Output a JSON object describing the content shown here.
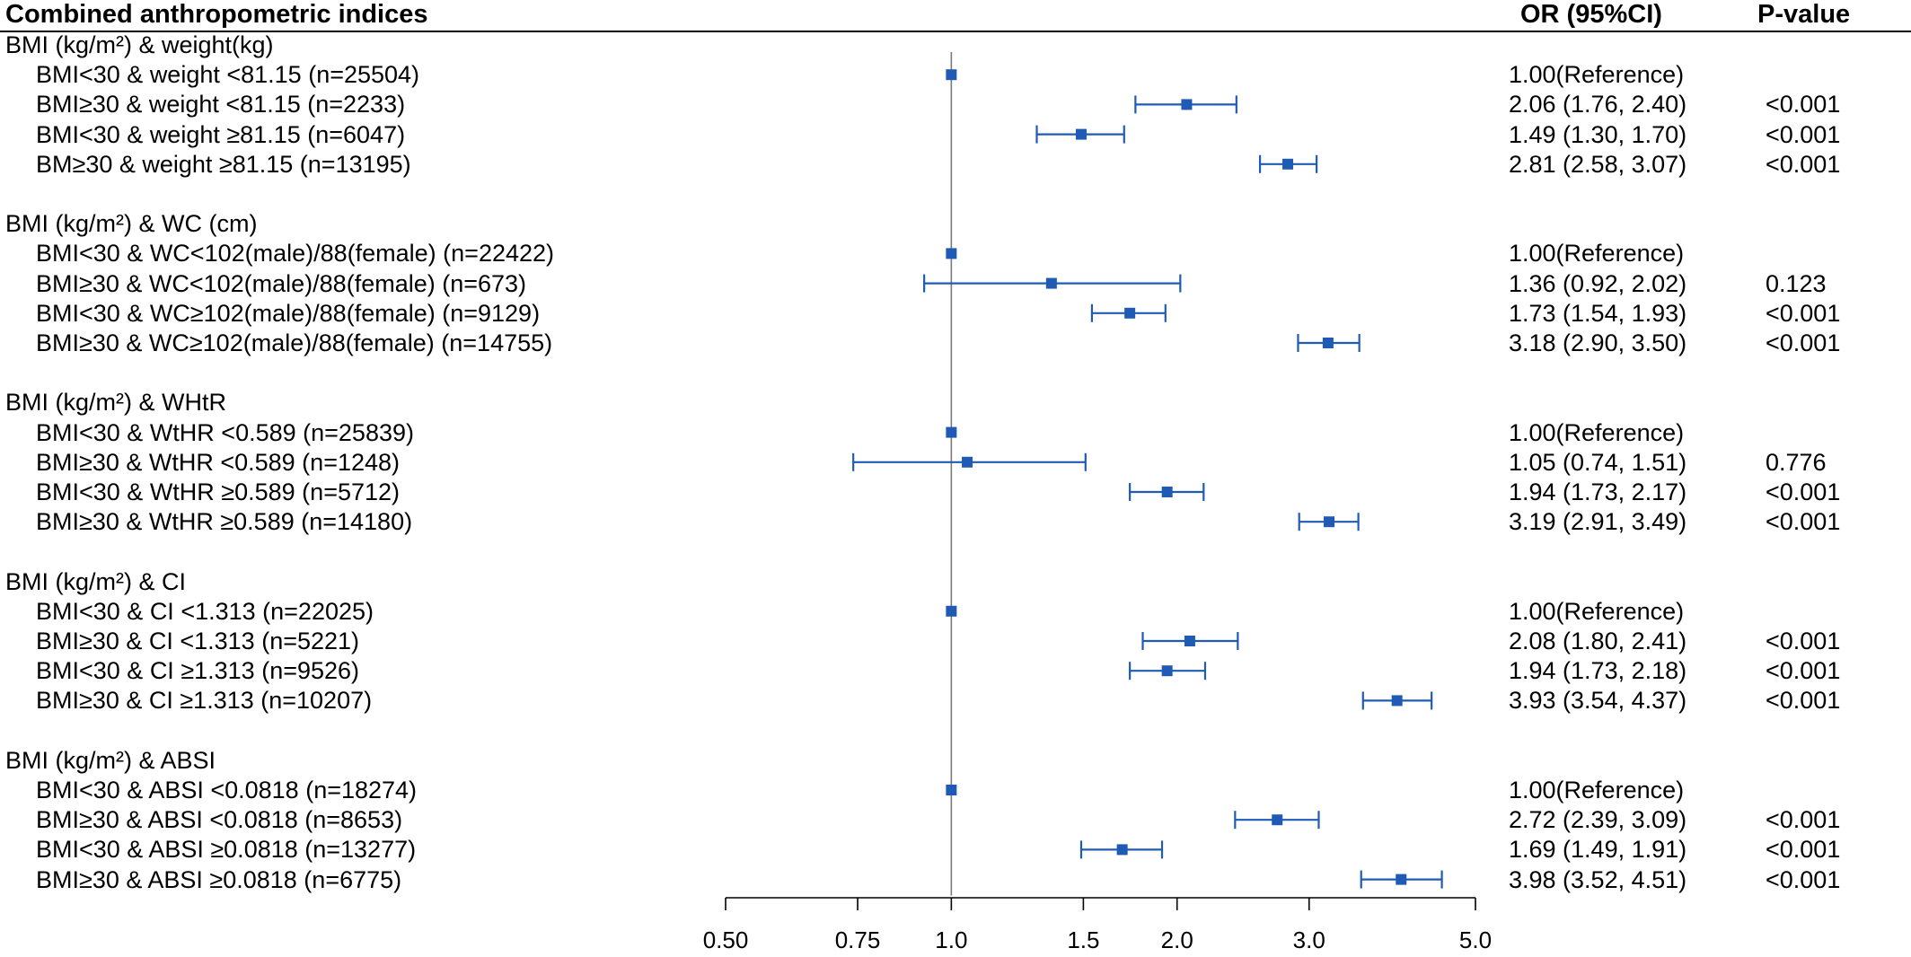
{
  "header": {
    "col_label": "Combined anthropometric indices",
    "col_or": "OR (95%CI)",
    "col_p": "P-value"
  },
  "chart_data": {
    "type": "forest",
    "x_scale": "log",
    "xlim": [
      0.5,
      5.0
    ],
    "reference_line": 1.0,
    "x_ticks": [
      0.5,
      0.75,
      1.0,
      1.5,
      2.0,
      3.0,
      5.0
    ],
    "x_tick_labels": [
      "0.50",
      "0.75",
      "1.0",
      "1.5",
      "2.0",
      "3.0",
      "5.0"
    ],
    "marker_color": "#1f5bb5",
    "groups": [
      {
        "title": "BMI (kg/m²) & weight(kg)",
        "rows": [
          {
            "label": "BMI<30 & weight <81.15 (n=25504)",
            "or": 1.0,
            "lo": null,
            "hi": null,
            "or_text": "1.00(Reference)",
            "p": ""
          },
          {
            "label": "BMI≥30 & weight <81.15 (n=2233)",
            "or": 2.06,
            "lo": 1.76,
            "hi": 2.4,
            "or_text": "2.06 (1.76, 2.40)",
            "p": "<0.001"
          },
          {
            "label": "BMI<30 & weight ≥81.15 (n=6047)",
            "or": 1.49,
            "lo": 1.3,
            "hi": 1.7,
            "or_text": "1.49 (1.30, 1.70)",
            "p": "<0.001"
          },
          {
            "label": "BM≥30 & weight ≥81.15 (n=13195)",
            "or": 2.81,
            "lo": 2.58,
            "hi": 3.07,
            "or_text": "2.81 (2.58, 3.07)",
            "p": "<0.001"
          }
        ]
      },
      {
        "title": "BMI (kg/m²) & WC (cm)",
        "rows": [
          {
            "label": "BMI<30 & WC<102(male)/88(female) (n=22422)",
            "or": 1.0,
            "lo": null,
            "hi": null,
            "or_text": "1.00(Reference)",
            "p": ""
          },
          {
            "label": "BMI≥30 & WC<102(male)/88(female) (n=673)",
            "or": 1.36,
            "lo": 0.92,
            "hi": 2.02,
            "or_text": "1.36 (0.92, 2.02)",
            "p": "0.123"
          },
          {
            "label": "BMI<30 & WC≥102(male)/88(female) (n=9129)",
            "or": 1.73,
            "lo": 1.54,
            "hi": 1.93,
            "or_text": "1.73 (1.54, 1.93)",
            "p": "<0.001"
          },
          {
            "label": "BMI≥30 & WC≥102(male)/88(female) (n=14755)",
            "or": 3.18,
            "lo": 2.9,
            "hi": 3.5,
            "or_text": "3.18 (2.90, 3.50)",
            "p": "<0.001"
          }
        ]
      },
      {
        "title": "BMI (kg/m²) & WHtR",
        "rows": [
          {
            "label": "BMI<30 & WtHR <0.589 (n=25839)",
            "or": 1.0,
            "lo": null,
            "hi": null,
            "or_text": "1.00(Reference)",
            "p": ""
          },
          {
            "label": "BMI≥30 & WtHR <0.589 (n=1248)",
            "or": 1.05,
            "lo": 0.74,
            "hi": 1.51,
            "or_text": "1.05 (0.74, 1.51)",
            "p": "0.776"
          },
          {
            "label": "BMI<30 & WtHR ≥0.589 (n=5712)",
            "or": 1.94,
            "lo": 1.73,
            "hi": 2.17,
            "or_text": "1.94 (1.73, 2.17)",
            "p": "<0.001"
          },
          {
            "label": "BMI≥30 & WtHR ≥0.589 (n=14180)",
            "or": 3.19,
            "lo": 2.91,
            "hi": 3.49,
            "or_text": "3.19 (2.91, 3.49)",
            "p": "<0.001"
          }
        ]
      },
      {
        "title": "BMI (kg/m²) & CI",
        "rows": [
          {
            "label": "BMI<30 & CI <1.313 (n=22025)",
            "or": 1.0,
            "lo": null,
            "hi": null,
            "or_text": "1.00(Reference)",
            "p": ""
          },
          {
            "label": "BMI≥30 & CI <1.313 (n=5221)",
            "or": 2.08,
            "lo": 1.8,
            "hi": 2.41,
            "or_text": "2.08 (1.80, 2.41)",
            "p": "<0.001"
          },
          {
            "label": "BMI<30 & CI ≥1.313 (n=9526)",
            "or": 1.94,
            "lo": 1.73,
            "hi": 2.18,
            "or_text": "1.94 (1.73, 2.18)",
            "p": "<0.001"
          },
          {
            "label": "BMI≥30 & CI ≥1.313 (n=10207)",
            "or": 3.93,
            "lo": 3.54,
            "hi": 4.37,
            "or_text": "3.93 (3.54, 4.37)",
            "p": "<0.001"
          }
        ]
      },
      {
        "title": "BMI (kg/m²) & ABSI",
        "rows": [
          {
            "label": "BMI<30 & ABSI <0.0818 (n=18274)",
            "or": 1.0,
            "lo": null,
            "hi": null,
            "or_text": "1.00(Reference)",
            "p": ""
          },
          {
            "label": "BMI≥30 & ABSI <0.0818 (n=8653)",
            "or": 2.72,
            "lo": 2.39,
            "hi": 3.09,
            "or_text": "2.72 (2.39, 3.09)",
            "p": "<0.001"
          },
          {
            "label": "BMI<30 & ABSI ≥0.0818 (n=13277)",
            "or": 1.69,
            "lo": 1.49,
            "hi": 1.91,
            "or_text": "1.69 (1.49, 1.91)",
            "p": "<0.001"
          },
          {
            "label": "BMI≥30 & ABSI ≥0.0818 (n=6775)",
            "or": 3.98,
            "lo": 3.52,
            "hi": 4.51,
            "or_text": "3.98 (3.52, 4.51)",
            "p": "<0.001"
          }
        ]
      }
    ]
  }
}
